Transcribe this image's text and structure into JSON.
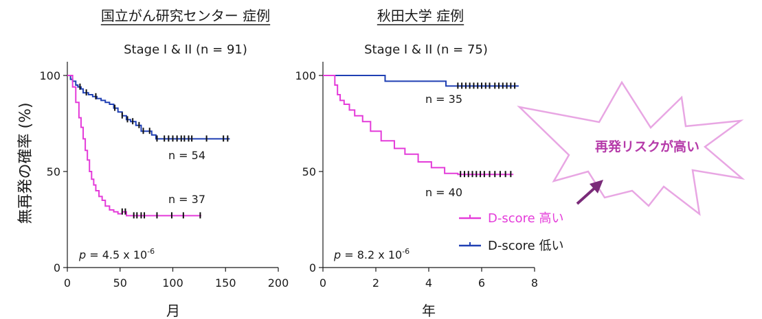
{
  "colors": {
    "high": "#e43bd9",
    "low": "#1f3fb3",
    "burst_fill": "#ffffff",
    "burst_stroke": "#e8a6e3",
    "burst_text": "#b53aa9",
    "arrow": "#7a2b79"
  },
  "y_axis_label": "無再発の確率 (%)",
  "legend": {
    "high_label": "D-score 高い",
    "low_label": "D-score 低い"
  },
  "callout": {
    "text": "再発リスクが高い"
  },
  "chart_data": [
    {
      "type": "line",
      "step": true,
      "title": "国立がん研究センター 症例",
      "subtitle": "Stage I & II (n = 91)",
      "xlabel": "月",
      "xlim": [
        0,
        200
      ],
      "ylim": [
        0,
        100
      ],
      "xticks": [
        0,
        50,
        100,
        150,
        200
      ],
      "yticks": [
        0,
        50,
        100
      ],
      "p_prefix": "p",
      "p_value": "= 4.5 x 10",
      "p_exp": "-6",
      "series": [
        {
          "key": "low",
          "n_label": "n = 54",
          "x": [
            0,
            3,
            5,
            8,
            10,
            13,
            15,
            20,
            24,
            28,
            32,
            36,
            40,
            44,
            48,
            52,
            56,
            60,
            65,
            70,
            80,
            84,
            154
          ],
          "y": [
            100,
            98,
            97,
            95,
            94,
            93,
            91,
            90,
            89,
            88,
            87,
            86,
            85,
            83,
            81,
            79,
            77,
            76,
            74,
            71,
            69,
            67,
            67
          ],
          "censor_x": [
            12,
            18,
            27,
            45,
            52,
            57,
            62,
            68,
            72,
            78,
            85,
            92,
            96,
            100,
            104,
            108,
            111,
            115,
            118,
            132,
            148,
            152
          ]
        },
        {
          "key": "high",
          "n_label": "n = 37",
          "x": [
            0,
            5,
            8,
            11,
            13,
            15,
            17,
            19,
            21,
            23,
            25,
            27,
            30,
            33,
            36,
            40,
            44,
            48,
            52,
            56,
            127
          ],
          "y": [
            100,
            94,
            86,
            78,
            73,
            67,
            61,
            56,
            50,
            46,
            43,
            40,
            37,
            35,
            32,
            30,
            29,
            28,
            29,
            27,
            27
          ],
          "censor_x": [
            52,
            55,
            63,
            66,
            70,
            73,
            85,
            99,
            110,
            126
          ]
        }
      ]
    },
    {
      "type": "line",
      "step": true,
      "title": "秋田大学 症例",
      "subtitle": "Stage I & II (n = 75)",
      "xlabel": "年",
      "xlim": [
        0,
        8
      ],
      "ylim": [
        0,
        100
      ],
      "xticks": [
        0,
        2,
        4,
        6,
        8
      ],
      "yticks": [
        0,
        50,
        100
      ],
      "p_prefix": "p",
      "p_value": "= 8.2 x 10",
      "p_exp": "-6",
      "series": [
        {
          "key": "low",
          "n_label": "n = 35",
          "x": [
            0,
            2.35,
            4.65,
            7.4
          ],
          "y": [
            100,
            97,
            94.5,
            94.5
          ],
          "censor_x": [
            5.1,
            5.25,
            5.4,
            5.55,
            5.7,
            5.85,
            6.0,
            6.15,
            6.3,
            6.5,
            6.65,
            6.8,
            6.95,
            7.1,
            7.25
          ]
        },
        {
          "key": "high",
          "n_label": "n = 40",
          "x": [
            0,
            0.45,
            0.55,
            0.65,
            0.8,
            1.0,
            1.2,
            1.5,
            1.8,
            2.2,
            2.7,
            3.1,
            3.6,
            4.1,
            4.6,
            5.1,
            7.2
          ],
          "y": [
            100,
            95,
            90,
            87,
            85,
            82,
            79,
            76,
            71,
            66,
            62,
            59,
            55,
            52,
            49,
            48.5,
            48.5
          ],
          "censor_x": [
            5.2,
            5.35,
            5.5,
            5.65,
            5.8,
            5.95,
            6.1,
            6.3,
            6.5,
            6.7,
            6.9,
            7.1
          ]
        }
      ]
    }
  ]
}
